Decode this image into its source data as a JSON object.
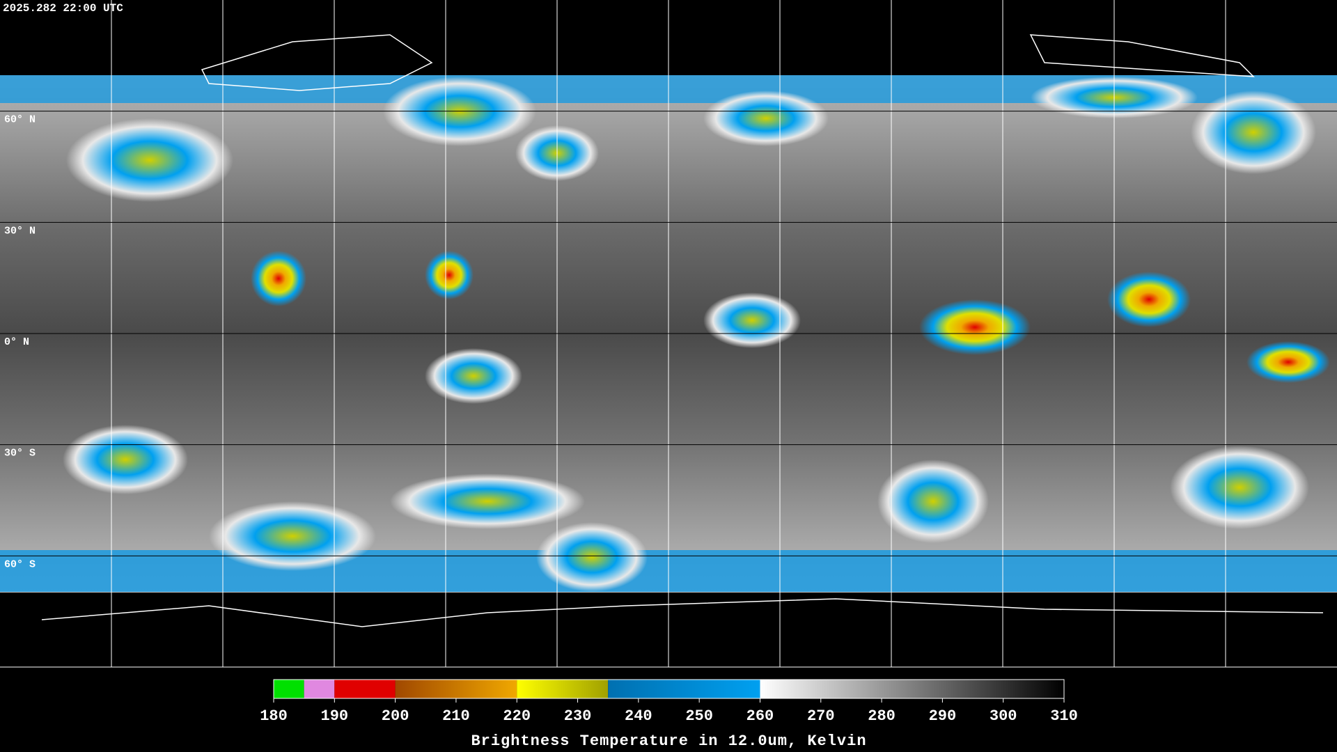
{
  "header": {
    "timestamp": "2025.282 22:00 UTC"
  },
  "map": {
    "lat_labels": [
      {
        "value": 60,
        "label": "60° N"
      },
      {
        "value": 30,
        "label": "30° N"
      },
      {
        "value": 0,
        "label": "0° N"
      },
      {
        "value": -30,
        "label": "30° S"
      },
      {
        "value": -60,
        "label": "60° S"
      }
    ]
  },
  "colorbar": {
    "range": [
      180,
      310
    ],
    "ticks": [
      180,
      190,
      200,
      210,
      220,
      230,
      240,
      250,
      260,
      270,
      280,
      290,
      300,
      310
    ],
    "segments": [
      {
        "from": 180,
        "to": 185,
        "colors": [
          "#00e000",
          "#00e000"
        ]
      },
      {
        "from": 185,
        "to": 190,
        "colors": [
          "#e088e0",
          "#e088e0"
        ]
      },
      {
        "from": 190,
        "to": 200,
        "colors": [
          "#e00000",
          "#e00000"
        ]
      },
      {
        "from": 200,
        "to": 220,
        "colors": [
          "#a04800",
          "#f0a800"
        ]
      },
      {
        "from": 220,
        "to": 235,
        "colors": [
          "#ffff00",
          "#a0a000"
        ]
      },
      {
        "from": 235,
        "to": 260,
        "colors": [
          "#0070b0",
          "#00a0f0"
        ]
      },
      {
        "from": 260,
        "to": 310,
        "colors": [
          "#ffffff",
          "#000000"
        ]
      }
    ],
    "label": "Brightness Temperature in 12.0um, Kelvin"
  }
}
